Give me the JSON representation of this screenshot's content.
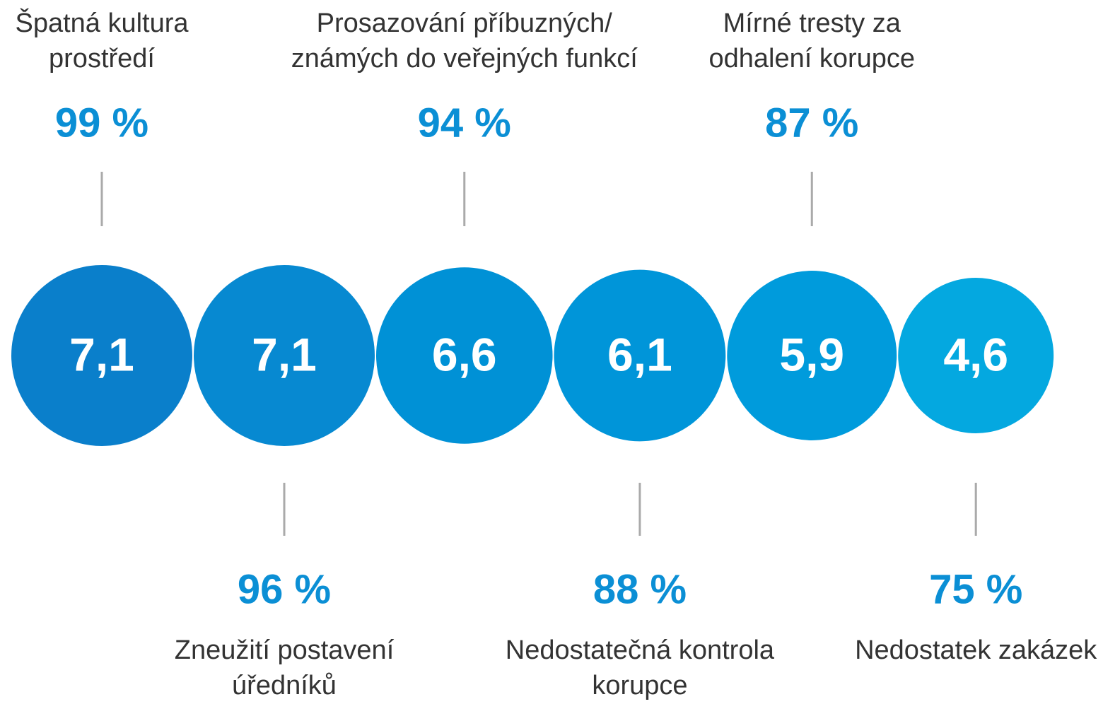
{
  "chart_data": {
    "type": "bubble",
    "categories": [
      [
        "Špatná kultura",
        "prostředí"
      ],
      [
        "Zneužití postavení",
        "úředníků"
      ],
      [
        "Prosazování příbuzných/",
        "známých do veřejných funkcí"
      ],
      [
        "Nedostatečná kontrola",
        "korupce"
      ],
      [
        "Mírné tresty za",
        "odhalení korupce"
      ],
      [
        "Nedostatek zakázek"
      ]
    ],
    "values": [
      7.1,
      7.1,
      6.6,
      6.1,
      5.9,
      4.6
    ],
    "value_labels": [
      "7,1",
      "7,1",
      "6,6",
      "6,1",
      "5,9",
      "4,6"
    ],
    "shares": [
      "99 %",
      "96 %",
      "94 %",
      "88 %",
      "87 %",
      "75 %"
    ],
    "colors": [
      "#0a7fcb",
      "#0789d1",
      "#0091d6",
      "#0095d9",
      "#009bdc",
      "#04a8e0"
    ]
  }
}
